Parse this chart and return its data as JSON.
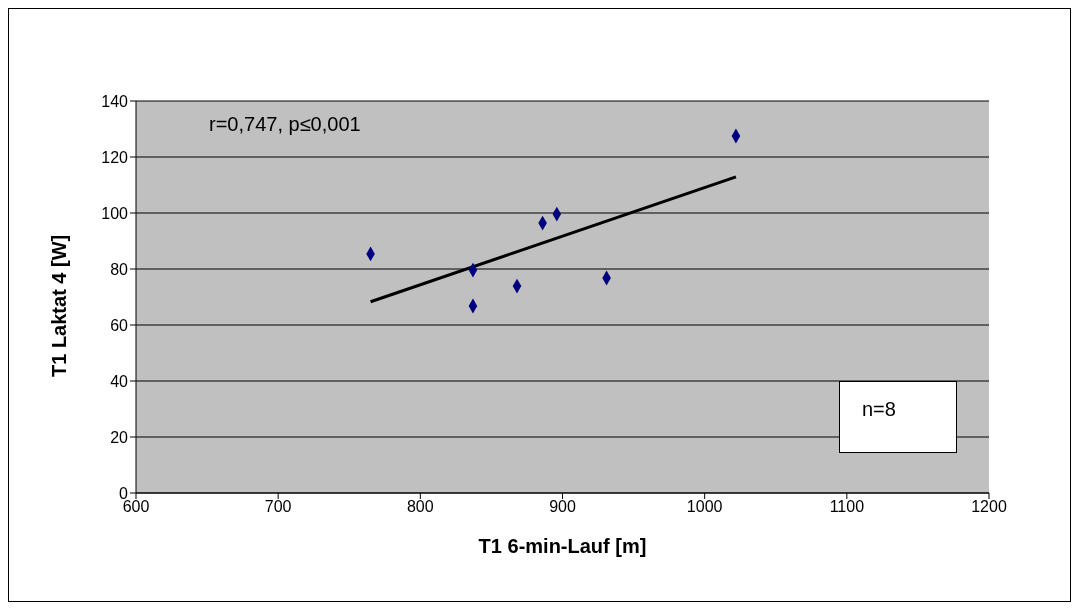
{
  "chart_data": {
    "type": "scatter",
    "xlabel": "T1 6-min-Lauf [m]",
    "ylabel": "T1 Laktat 4 [W]",
    "xlim": [
      600,
      1200
    ],
    "xticks": [
      600,
      700,
      800,
      900,
      1000,
      1100,
      1200
    ],
    "ylim": [
      0,
      140
    ],
    "yticks": [
      0,
      20,
      40,
      60,
      80,
      100,
      120,
      140
    ],
    "grid": "y",
    "marker": "diamond",
    "annotations": [
      "r=0,747, p≤0,001",
      "n=8"
    ],
    "series": [
      {
        "color": "#000080",
        "x": [
          765,
          837,
          837,
          868,
          886,
          896,
          931,
          1022
        ],
        "values": [
          85.4,
          79.6,
          66.8,
          73.9,
          96.4,
          99.6,
          76.8,
          127.5
        ]
      },
      {
        "type": "line",
        "color": "#000000",
        "marker": "none",
        "line_style": "solid",
        "x": [
          765,
          1022
        ],
        "values": [
          68.3,
          112.9
        ]
      }
    ]
  }
}
